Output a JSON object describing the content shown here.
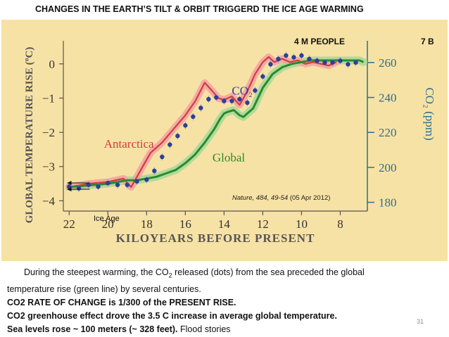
{
  "slide": {
    "title": "CHANGES IN THE EARTH’S TILT & ORBIT TRIGGERD THE ICE AGE WARMING",
    "page_number": "31"
  },
  "annotations": {
    "people_4m": "4 M PEOPLE",
    "people_7b": "7 B",
    "ice_age": "Ice Age",
    "citation_journal": "Nature, 484, 49-54",
    "citation_date": " (05 Apr 2012)"
  },
  "chart_data": {
    "type": "line",
    "xlabel": "KILOYEARS BEFORE PRESENT",
    "ylabel_left": "GLOBAL TEMPERATURE RISE (ºC)",
    "ylabel_right": "CO₂ (ppm)",
    "xlim": [
      22.3,
      6.6
    ],
    "ylim_left": [
      -4.3,
      0.55
    ],
    "ylim_right": [
      175,
      270
    ],
    "x_ticks": [
      22,
      20,
      18,
      16,
      14,
      12,
      10,
      8
    ],
    "y_left_ticks": [
      0,
      -1,
      -2,
      -3,
      -4
    ],
    "y_right_ticks": [
      260,
      240,
      220,
      200,
      180
    ],
    "series": [
      {
        "name": "Antarctica",
        "color": "#d13c3c",
        "band_color": "#f3a2a2",
        "x": [
          22.0,
          21.0,
          20.0,
          19.2,
          18.8,
          18.5,
          18.2,
          17.8,
          17.2,
          16.6,
          16.0,
          15.5,
          15.0,
          14.6,
          14.3,
          14.0,
          13.6,
          13.2,
          12.8,
          12.4,
          12.0,
          11.7,
          11.4,
          11.0,
          10.6,
          10.2,
          9.8,
          9.4,
          9.0,
          8.6,
          8.2
        ],
        "values": [
          -3.6,
          -3.5,
          -3.45,
          -3.35,
          -3.6,
          -3.3,
          -3.0,
          -2.6,
          -2.3,
          -1.9,
          -1.5,
          -1.1,
          -0.55,
          -0.8,
          -1.0,
          -1.05,
          -0.95,
          -1.2,
          -0.8,
          -0.3,
          0.05,
          0.2,
          0.05,
          0.15,
          0.05,
          0.1,
          0.0,
          0.05,
          0.0,
          -0.05,
          0.05
        ]
      },
      {
        "name": "Global",
        "color": "#2a8a2a",
        "band_color": "#a9d99a",
        "x": [
          22.0,
          21.0,
          20.0,
          19.0,
          18.5,
          18.0,
          17.5,
          17.0,
          16.5,
          16.0,
          15.5,
          15.0,
          14.5,
          14.2,
          14.0,
          13.8,
          13.5,
          13.2,
          13.0,
          12.8,
          12.5,
          12.0,
          11.5,
          11.0,
          10.5,
          10.0,
          9.5,
          9.0,
          8.5,
          8.0,
          7.5,
          7.0,
          6.8
        ],
        "values": [
          -3.6,
          -3.55,
          -3.5,
          -3.4,
          -3.4,
          -3.35,
          -3.3,
          -3.2,
          -3.1,
          -2.9,
          -2.65,
          -2.3,
          -1.9,
          -1.6,
          -1.45,
          -1.4,
          -1.35,
          -1.5,
          -1.55,
          -1.45,
          -1.3,
          -0.7,
          -0.3,
          -0.1,
          0.0,
          0.05,
          0.1,
          0.1,
          0.1,
          0.1,
          0.1,
          0.1,
          0.05
        ]
      },
      {
        "name": "CO₂",
        "axis": "right",
        "color": "#2c3f9a",
        "x": [
          22.0,
          21.5,
          21.0,
          20.5,
          20.0,
          19.5,
          19.0,
          18.5,
          18.0,
          17.6,
          17.2,
          16.8,
          16.4,
          16.0,
          15.6,
          15.2,
          14.8,
          14.4,
          14.0,
          13.6,
          13.2,
          12.8,
          12.4,
          12.0,
          11.6,
          11.2,
          10.8,
          10.4,
          10.0,
          9.6,
          9.2,
          8.8,
          8.4,
          8.0,
          7.6,
          7.2
        ],
        "values": [
          189,
          188,
          190,
          189,
          191,
          190,
          190,
          192,
          193,
          198,
          206,
          213,
          218,
          224,
          229,
          234,
          239,
          240,
          238,
          238,
          239,
          237,
          244,
          252,
          259,
          262,
          264,
          263,
          264,
          262,
          261,
          260,
          260,
          261,
          259,
          260
        ]
      }
    ]
  },
  "bottom_text": {
    "line1_pre": "During the steepest warming, the CO",
    "line1_sub": "2",
    "line1_post": " released (dots) from the sea preceded the global",
    "line2": "temperature rise (green line) by several centuries.",
    "line3": "CO2 RATE OF CHANGE is 1/300 of the PRESENT RISE.",
    "line4": "CO2 greenhouse effect drove the 3.5 C increase in average global temperature.",
    "line5_bold": "Sea levels rose ~ 100 meters (~ 328 feet).",
    "line5_rest": "  Flood stories"
  }
}
